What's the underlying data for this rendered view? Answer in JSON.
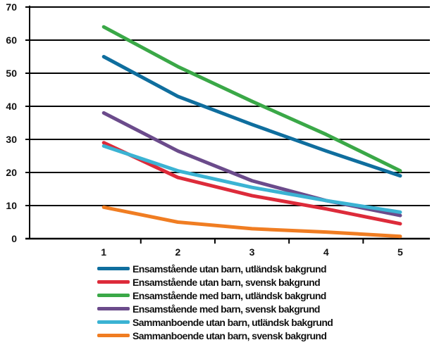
{
  "chart_data": {
    "type": "line",
    "x": [
      1,
      2,
      3,
      4,
      5
    ],
    "xlim": [
      0,
      5.4
    ],
    "ylim": [
      0,
      70
    ],
    "y_ticks": [
      0,
      10,
      20,
      30,
      40,
      50,
      60,
      70
    ],
    "grid": "horizontal",
    "legend_position": "bottom",
    "series": [
      {
        "name": "Ensamstående utan barn, utländsk bakgrund",
        "color": "#0f6e9e",
        "values": [
          55,
          43,
          34.5,
          26.5,
          19
        ]
      },
      {
        "name": "Ensamstående utan barn, svensk bakgrund",
        "color": "#dd2b3a",
        "values": [
          29,
          18.5,
          13,
          9,
          4.5
        ]
      },
      {
        "name": "Ensamstående med barn, utländsk bakgrund",
        "color": "#3aa847",
        "values": [
          64,
          52,
          41.5,
          31.5,
          20.5
        ]
      },
      {
        "name": "Ensamstående med barn, svensk bakgrund",
        "color": "#6b4b8b",
        "values": [
          38,
          26.5,
          17.5,
          11.5,
          7
        ]
      },
      {
        "name": "Sammanboende utan barn, utländsk bakgrund",
        "color": "#3bb3d3",
        "values": [
          28,
          20.5,
          15.5,
          11.5,
          8
        ]
      },
      {
        "name": "Sammanboende utan barn, svensk bakgrund",
        "color": "#f07d22",
        "values": [
          9.5,
          5,
          3,
          2,
          0.7
        ]
      }
    ]
  }
}
